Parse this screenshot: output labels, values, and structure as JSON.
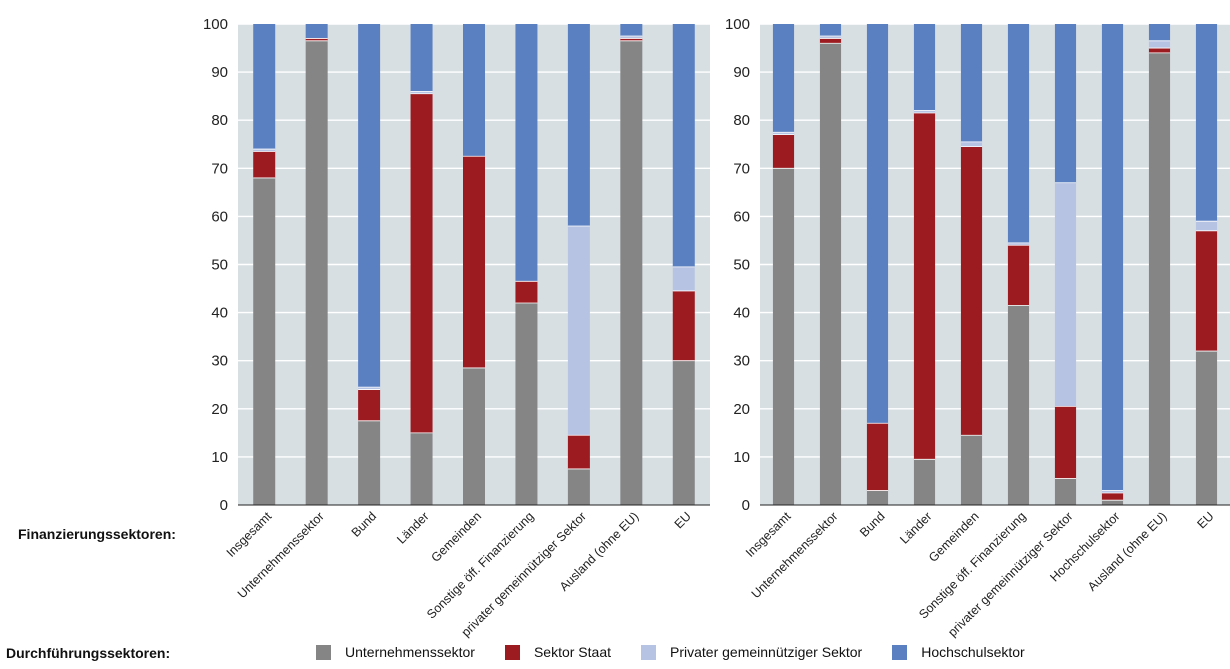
{
  "labels": {
    "financing": "Finanzierungssektoren:",
    "execution": "Durchführungssektoren:"
  },
  "legend": [
    {
      "name": "Unternehmenssektor",
      "color": "#858585"
    },
    {
      "name": "Sektor Staat",
      "color": "#9b1b20"
    },
    {
      "name": "Privater gemeinnütziger Sektor",
      "color": "#b7c3e2"
    },
    {
      "name": "Hochschulsektor",
      "color": "#5b80c2"
    }
  ],
  "chart_data": [
    {
      "type": "bar",
      "stacked": true,
      "ylim": [
        0,
        100
      ],
      "yticks": [
        0,
        10,
        20,
        30,
        40,
        50,
        60,
        70,
        80,
        90,
        100
      ],
      "grid": true,
      "categories": [
        "Insgesamt",
        "Unternehmenssektor",
        "Bund",
        "Länder",
        "Gemeinden",
        "Sonstige öff. Finanzierung",
        "privater gemeinnütziger Sektor",
        "Ausland (ohne EU)",
        "EU"
      ],
      "series": [
        {
          "name": "Unternehmenssektor",
          "values": [
            68,
            96.5,
            17.5,
            15,
            28.5,
            42,
            7.5,
            96.5,
            30
          ]
        },
        {
          "name": "Sektor Staat",
          "values": [
            5.5,
            0.5,
            6.5,
            70.5,
            44,
            4.5,
            7,
            0.5,
            14.5
          ]
        },
        {
          "name": "Privater gemeinnütziger Sektor",
          "values": [
            0.5,
            0,
            0.5,
            0.5,
            0,
            0,
            43.5,
            0.5,
            5
          ]
        },
        {
          "name": "Hochschulsektor",
          "values": [
            26,
            3,
            75.5,
            14,
            27.5,
            53.5,
            42,
            2.5,
            50.5
          ]
        }
      ]
    },
    {
      "type": "bar",
      "stacked": true,
      "ylim": [
        0,
        100
      ],
      "yticks": [
        0,
        10,
        20,
        30,
        40,
        50,
        60,
        70,
        80,
        90,
        100
      ],
      "grid": true,
      "categories": [
        "Insgesamt",
        "Unternehmenssektor",
        "Bund",
        "Länder",
        "Gemeinden",
        "Sonstige öff. Finanzierung",
        "privater gemeinnütziger Sektor",
        "Hochschulsektor",
        "Ausland (ohne EU)",
        "EU"
      ],
      "series": [
        {
          "name": "Unternehmenssektor",
          "values": [
            70,
            96,
            3,
            9.5,
            14.5,
            41.5,
            5.5,
            1,
            94,
            32
          ]
        },
        {
          "name": "Sektor Staat",
          "values": [
            7,
            1,
            14,
            72,
            60,
            12.5,
            15,
            1.5,
            1,
            25
          ]
        },
        {
          "name": "Privater gemeinnütziger Sektor",
          "values": [
            0.5,
            0.5,
            0,
            0.5,
            1,
            0.5,
            46.5,
            0.5,
            1.5,
            2
          ]
        },
        {
          "name": "Hochschulsektor",
          "values": [
            22.5,
            2.5,
            83,
            18,
            24.5,
            45.5,
            33,
            97,
            3.5,
            41
          ]
        }
      ]
    }
  ]
}
